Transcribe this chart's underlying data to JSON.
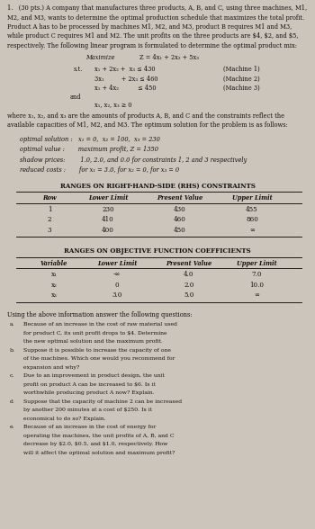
{
  "bg_color": "#ccc5bc",
  "intro_lines": [
    "1.   (30 pts.) A company that manufactures three products, A, B, and C, using three machines, M1,",
    "M2, and M3, wants to determine the optimal production schedule that maximizes the total profit.",
    "Product A has to be processed by machines M1, M2, and M3, product B requires M1 and M3,",
    "while product C requires M1 and M2. The unit profits on the three products are $4, $2, and $5,",
    "respectively. The following linear program is formulated to determine the optimal product mix:"
  ],
  "maximize_label": "Maximize",
  "maximize_eq": "Z = 4x₁ + 2x₂ + 5x₃",
  "st_label": "s.t.",
  "constraints": [
    [
      "x₁ + 2x₂ +  x₃ ≤ 430",
      "(Machine 1)"
    ],
    [
      "3x₁         + 2x₃ ≤ 460",
      "(Machine 2)"
    ],
    [
      "x₁ + 4x₂          ≤ 450",
      "(Machine 3)"
    ]
  ],
  "and_label": "and",
  "nonneg": "x₁, x₂, x₃ ≥ 0",
  "where_lines": [
    "where x₁, x₂, and x₃ are the amounts of products A, B, and C and the constraints reflect the",
    "available capacities of M1, M2, and M3. The optimum solution for the problem is as follows:"
  ],
  "opt_solution": "optimal solution :   x₁ = 0,  x₂ = 100,  x₃ = 230",
  "opt_value": "optimal value :       maximum profit, Z = 1350",
  "shadow_prices": "shadow prices:        1.0, 2.0, and 0.0 for constraints 1, 2 and 3 respectively",
  "reduced_costs": "reduced costs :       for x₁ = 3.0, for x₂ = 0, for x₃ = 0",
  "rhs_title": "RANGES ON RIGHT-HAND-SIDE (RHS) CONSTRAINTS",
  "rhs_headers": [
    "Row",
    "Lower Limit",
    "Present Value",
    "Upper Limit"
  ],
  "rhs_data": [
    [
      "1",
      "230",
      "430",
      "455"
    ],
    [
      "2",
      "410",
      "460",
      "860"
    ],
    [
      "3",
      "400",
      "450",
      "∞"
    ]
  ],
  "obj_title": "RANGES ON OBJECTIVE FUNCTION COEFFICIENTS",
  "obj_headers": [
    "Variable",
    "Lower Limit",
    "Present Value",
    "Upper Limit"
  ],
  "obj_data": [
    [
      "x₁",
      "-∞",
      "4.0",
      "7.0"
    ],
    [
      "x₂",
      "0",
      "2.0",
      "10.0"
    ],
    [
      "x₃",
      "3.0",
      "5.0",
      "∞"
    ]
  ],
  "using_line": "Using the above information answer the following questions:",
  "questions": [
    [
      "a.",
      "Because of an increase in the cost of raw material used for product C, its unit profit drops to $4. Determine the new optimal solution and the maximum profit."
    ],
    [
      "b.",
      "Suppose it is possible to increase the capacity of one of the machines. Which one would you recommend for expansion and why?"
    ],
    [
      "c.",
      "Due to an improvement in product design, the unit profit on product A can be increased to $6. Is it worthwhile producing product A now? Explain."
    ],
    [
      "d.",
      "Suppose that the capacity of machine 2 can be increased by another 200 minutes at a cost of $250. Is it economical to do so? Explain."
    ],
    [
      "e.",
      "Because of an increase in the cost of energy for operating the machines, the unit profits of A, B, and C decrease by $2.0, $0.5, and $1.0, respectively. How will it affect the optimal solution and maximum profit?"
    ]
  ]
}
